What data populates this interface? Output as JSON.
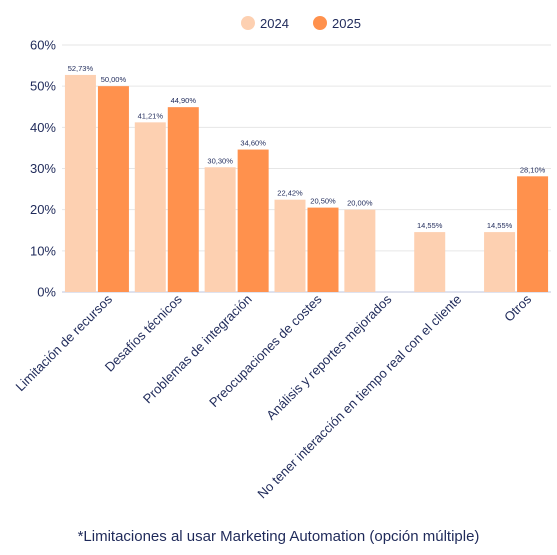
{
  "chart_data": {
    "type": "bar",
    "categories": [
      "Limitación de recursos",
      "Desafíos técnicos",
      "Problemas de integración",
      "Preocupaciones de costes",
      "Análisis y reportes mejorados",
      "No tener interacción en tiempo real con el cliente",
      "Otros"
    ],
    "series": [
      {
        "name": "2024",
        "color": "#fdd0b1",
        "values": [
          52.73,
          41.21,
          30.3,
          22.42,
          20.0,
          14.55,
          14.55
        ],
        "labels": [
          "52,73%",
          "41,21%",
          "30,30%",
          "22,42%",
          "20,00%",
          "14,55%",
          "14,55%"
        ]
      },
      {
        "name": "2025",
        "color": "#ff914d",
        "values": [
          50.0,
          44.9,
          34.6,
          20.5,
          null,
          null,
          28.1
        ],
        "labels": [
          "50,00%",
          "44,90%",
          "34,60%",
          "20,50%",
          "",
          "",
          "28,10%"
        ]
      }
    ],
    "y_ticks": [
      0,
      10,
      20,
      30,
      40,
      50,
      60
    ],
    "y_tick_labels": [
      "0%",
      "10%",
      "20%",
      "30%",
      "40%",
      "50%",
      "60%"
    ],
    "ylim": [
      0,
      60
    ],
    "grid": true,
    "legend_position": "top-right"
  },
  "footnote": "*Limitaciones al usar Marketing Automation (opción múltiple)"
}
